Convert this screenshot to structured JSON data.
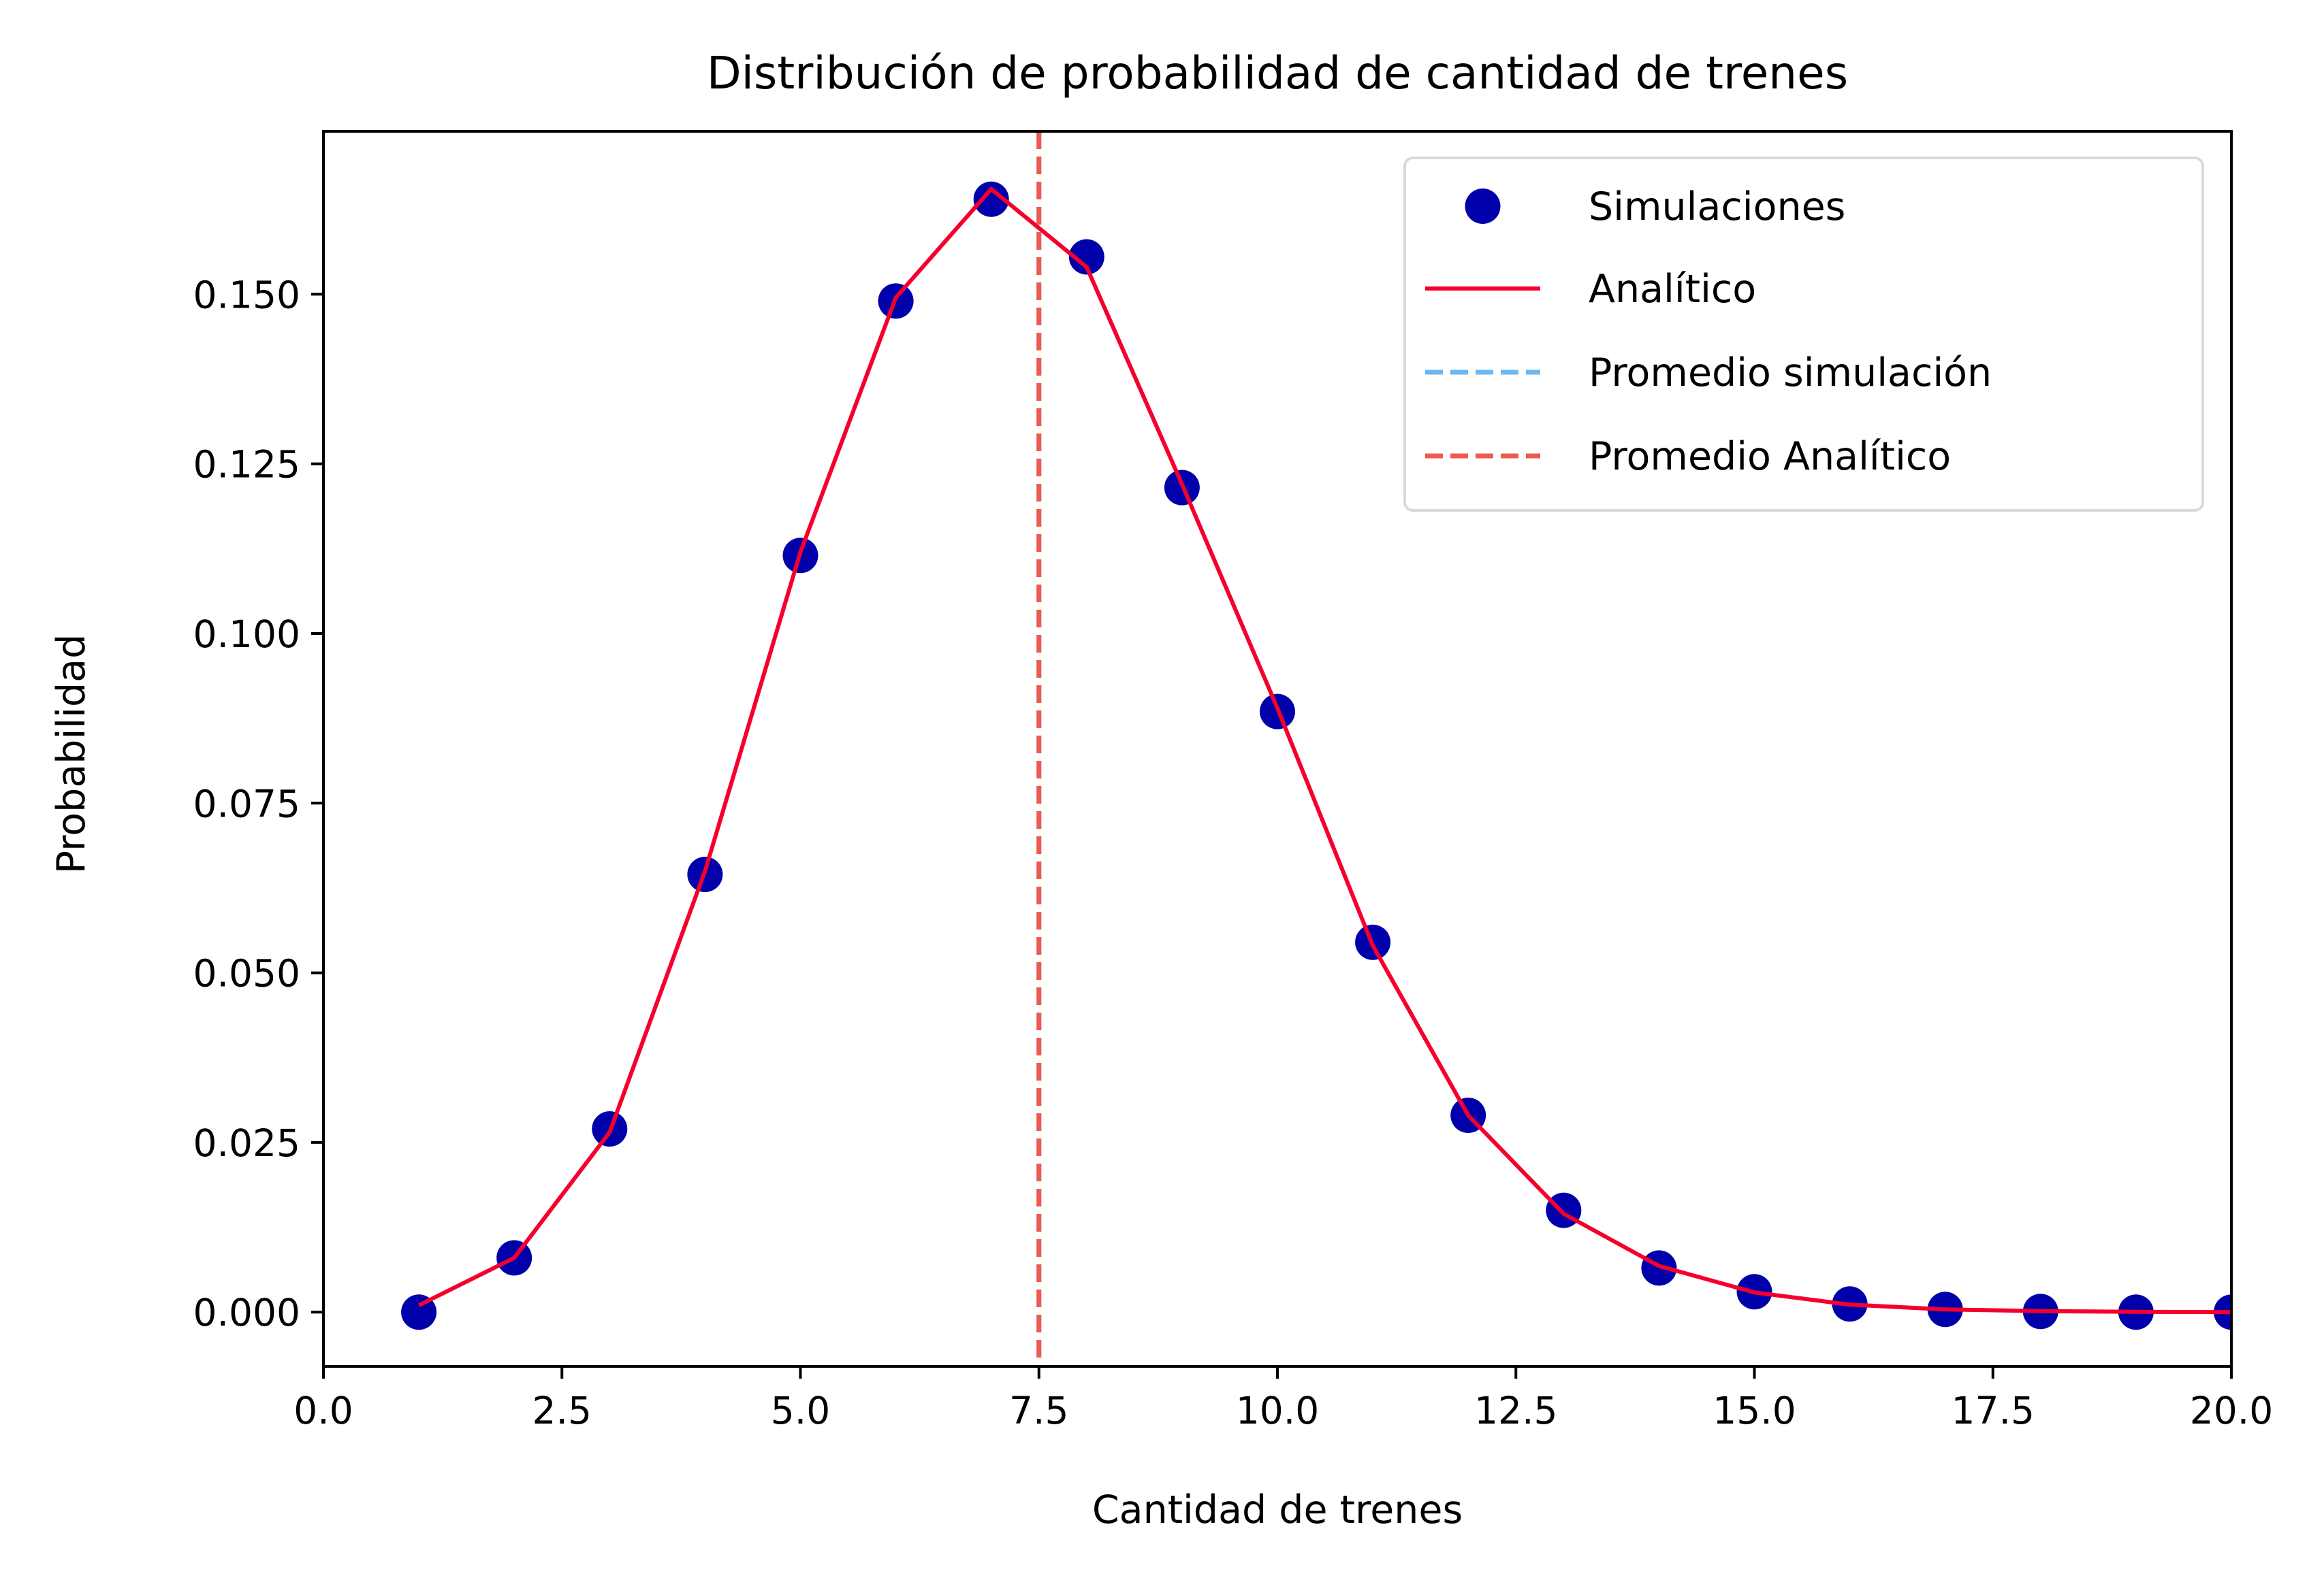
{
  "chart_data": {
    "type": "scatter",
    "title": "Distribución de probabilidad de cantidad de trenes",
    "xlabel": "Cantidad de trenes",
    "ylabel": "Probabilidad",
    "xlim": [
      0,
      20
    ],
    "ylim": [
      -0.008,
      0.174
    ],
    "xticks": [
      0.0,
      2.5,
      5.0,
      7.5,
      10.0,
      12.5,
      15.0,
      17.5,
      20.0
    ],
    "xtick_labels": [
      "0.0",
      "2.5",
      "5.0",
      "7.5",
      "10.0",
      "12.5",
      "15.0",
      "17.5",
      "20.0"
    ],
    "yticks": [
      0.0,
      0.025,
      0.05,
      0.075,
      0.1,
      0.125,
      0.15
    ],
    "ytick_labels": [
      "0.000",
      "0.025",
      "0.050",
      "0.075",
      "0.100",
      "0.125",
      "0.150"
    ],
    "grid": false,
    "legend_position": "top-right",
    "series": [
      {
        "name": "Simulaciones",
        "kind": "scatter",
        "color": "#0000AA",
        "x": [
          1,
          2,
          3,
          4,
          5,
          6,
          7,
          8,
          9,
          10,
          11,
          12,
          13,
          14,
          15,
          16,
          17,
          18,
          19,
          20
        ],
        "y": [
          0.0,
          0.008,
          0.027,
          0.0645,
          0.1115,
          0.149,
          0.164,
          0.1555,
          0.1215,
          0.0885,
          0.0545,
          0.029,
          0.015,
          0.0065,
          0.003,
          0.0012,
          0.0004,
          0.0001,
          0.0,
          0.0
        ]
      },
      {
        "name": "Analítico",
        "kind": "line",
        "color": "#F5002D",
        "x": [
          1,
          2,
          3,
          4,
          5,
          6,
          7,
          8,
          9,
          10,
          11,
          12,
          13,
          14,
          15,
          16,
          17,
          18,
          19,
          20
        ],
        "y": [
          0.001,
          0.008,
          0.0265,
          0.065,
          0.112,
          0.1495,
          0.1655,
          0.154,
          0.122,
          0.089,
          0.054,
          0.029,
          0.0145,
          0.0068,
          0.0029,
          0.0011,
          0.0004,
          0.00015,
          5e-05,
          0.0
        ]
      },
      {
        "name": "Promedio simulación",
        "kind": "vline",
        "color": "#6CB8F5",
        "x": 7.5
      },
      {
        "name": "Promedio Analítico",
        "kind": "vline",
        "color": "#EE5A4F",
        "x": 7.5
      }
    ]
  }
}
